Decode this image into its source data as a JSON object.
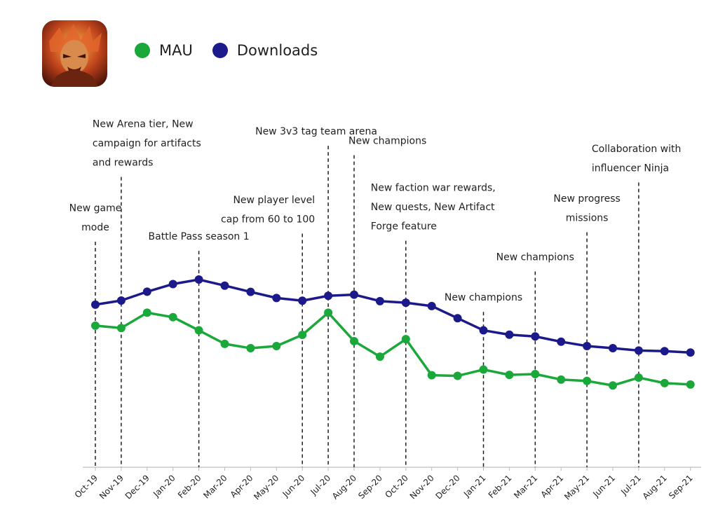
{
  "colors": {
    "mau": "#1aa83a",
    "downloads": "#1c1a8a",
    "axis": "#bdbdbd",
    "marker_line": "#1f1f1f",
    "text": "#1f1f1f"
  },
  "app_icon": {
    "name": "game-character-icon"
  },
  "legend": [
    {
      "label": "MAU",
      "series": "mau"
    },
    {
      "label": "Downloads",
      "series": "downloads"
    }
  ],
  "chart_data": {
    "type": "line",
    "title": "",
    "xlabel": "",
    "ylabel": "",
    "grid": false,
    "y_axis_shown": false,
    "ylim": [
      0,
      100
    ],
    "categories": [
      "Oct-19",
      "Nov-19",
      "Dec-19",
      "Jan-20",
      "Feb-20",
      "Mar-20",
      "Apr-20",
      "May-20",
      "Jun-20",
      "Jul-20",
      "Aug-20",
      "Sep-20",
      "Oct-20",
      "Nov-20",
      "Dec-20",
      "Jan-21",
      "Feb-21",
      "Mar-21",
      "Apr-21",
      "May-21",
      "Jun-21",
      "Jul-21",
      "Aug-21",
      "Sep-21"
    ],
    "series": [
      {
        "name": "Downloads",
        "key": "downloads",
        "values": [
          82.9,
          85.0,
          89.5,
          93.4,
          95.7,
          92.6,
          89.4,
          86.3,
          84.9,
          87.4,
          88.0,
          84.7,
          83.9,
          82.2,
          76.0,
          69.8,
          67.6,
          66.7,
          64.0,
          61.8,
          60.7,
          59.5,
          59.2,
          58.5
        ]
      },
      {
        "name": "MAU",
        "key": "mau",
        "values": [
          72.2,
          71.0,
          78.8,
          76.5,
          69.8,
          62.9,
          60.7,
          61.8,
          67.5,
          78.8,
          64.3,
          56.4,
          65.3,
          46.9,
          46.6,
          49.8,
          47.1,
          47.5,
          44.7,
          44.0,
          41.7,
          45.7,
          42.9,
          42.2
        ]
      }
    ],
    "event_lines": [
      {
        "category": "Oct-19",
        "label": [
          "New game",
          "mode"
        ],
        "anchor": "middle",
        "top_value": 115.0
      },
      {
        "category": "Nov-19",
        "label": [
          "New Arena tier, New",
          "campaign for artifacts",
          "and rewards"
        ],
        "anchor": "start",
        "top_value": 148.0
      },
      {
        "category": "Feb-20",
        "label": [
          "Battle Pass season 1"
        ],
        "anchor": "middle",
        "top_value": 110.3
      },
      {
        "category": "Jun-20",
        "label": [
          "New player level",
          "cap from 60 to 100"
        ],
        "anchor": "end",
        "top_value": 119.1
      },
      {
        "category": "Jul-20",
        "label": [
          "New 3v3 tag team arena"
        ],
        "anchor": "start",
        "top_value": 163.9
      },
      {
        "category": "Aug-20",
        "label": [
          "New champions"
        ],
        "anchor": "start",
        "top_value": 159.1
      },
      {
        "category": "Oct-20",
        "label": [
          "New faction war rewards,",
          "New quests, New Artifact",
          "Forge feature"
        ],
        "anchor": "start",
        "top_value": 115.5
      },
      {
        "category": "Jan-21",
        "label": [
          "New champions"
        ],
        "anchor": "middle",
        "top_value": 79.2
      },
      {
        "category": "Mar-21",
        "label": [
          "New champions"
        ],
        "anchor": "middle",
        "top_value": 99.8
      },
      {
        "category": "May-21",
        "label": [
          "New progress",
          "missions"
        ],
        "anchor": "middle",
        "top_value": 119.8
      },
      {
        "category": "Jul-21",
        "label": [
          "Collaboration with",
          "influencer Ninja"
        ],
        "anchor": "start",
        "top_value": 145.2
      }
    ]
  }
}
